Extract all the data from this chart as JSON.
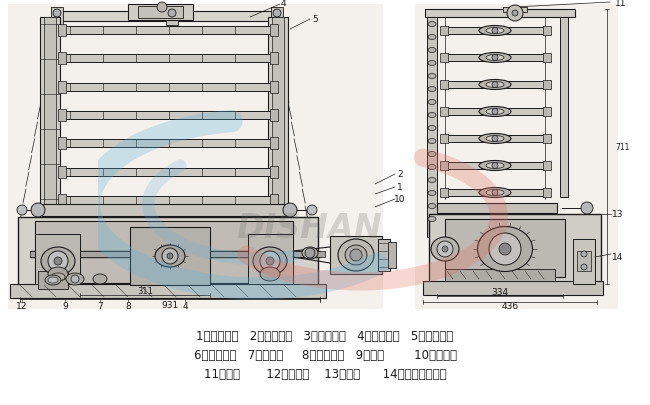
{
  "background_color": "#f0ede8",
  "line_color": "#1a1a1a",
  "fig_width": 6.5,
  "fig_height": 4.06,
  "dpi": 100,
  "watermark_text": "DISHAN",
  "watermark_color_blue": "#5ab4e0",
  "watermark_color_red": "#e07060",
  "caption_lines": [
    "1、传动主轴   2、小斜齿轮   3、大斜齿轮   4、上偏心轮   5、下偏心轮",
    "6、小斜齿轮   7、凸轮轴     8、大斜齿轮   9、凸轮        10、跳动杆",
    "11、捕快       12、甩油器    13、螺塔      14、自动停车装置"
  ],
  "caption_fontsize": 8.5,
  "lw_main": 1.0,
  "lw_detail": 0.6,
  "lw_thin": 0.4
}
